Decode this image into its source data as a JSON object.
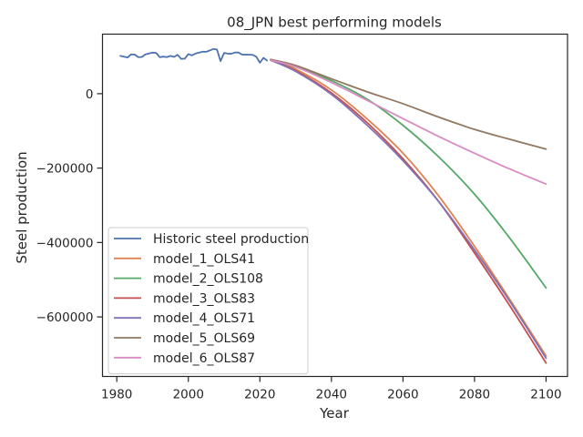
{
  "chart_data": {
    "type": "line",
    "title": "08_JPN best performing models",
    "xlabel": "Year",
    "ylabel": "Steel production",
    "xlim": [
      1976,
      2106
    ],
    "ylim": [
      -760000,
      160000
    ],
    "xticks": [
      1980,
      2000,
      2020,
      2040,
      2060,
      2080,
      2100
    ],
    "xtick_labels": [
      "1980",
      "2000",
      "2020",
      "2040",
      "2060",
      "2080",
      "2100"
    ],
    "yticks": [
      0,
      -200000,
      -400000,
      -600000
    ],
    "ytick_labels": [
      "0",
      "−200000",
      "−400000",
      "−600000"
    ],
    "grid": false,
    "legend_position": "lower-left",
    "series": [
      {
        "name": "Historic steel production",
        "color": "#4c72b0",
        "x": [
          1981,
          1982,
          1983,
          1984,
          1985,
          1986,
          1987,
          1988,
          1989,
          1990,
          1991,
          1992,
          1993,
          1994,
          1995,
          1996,
          1997,
          1998,
          1999,
          2000,
          2001,
          2002,
          2003,
          2004,
          2005,
          2006,
          2007,
          2008,
          2009,
          2010,
          2011,
          2012,
          2013,
          2014,
          2015,
          2016,
          2017,
          2018,
          2019,
          2020,
          2021,
          2022
        ],
        "y": [
          101700,
          99500,
          97200,
          105600,
          105300,
          98300,
          98500,
          105700,
          108000,
          110300,
          109600,
          98100,
          99600,
          98300,
          101600,
          98800,
          104500,
          93500,
          94200,
          106400,
          102900,
          107700,
          110500,
          112700,
          112500,
          116200,
          120200,
          118700,
          87500,
          109600,
          107600,
          107200,
          110600,
          110700,
          105100,
          104800,
          104700,
          104300,
          99300,
          83200,
          96300,
          89200
        ]
      },
      {
        "name": "model_1_OLS41",
        "color": "#dd8452",
        "x": [
          2023,
          2030,
          2040,
          2050,
          2060,
          2070,
          2080,
          2090,
          2100
        ],
        "y": [
          90000,
          66000,
          10000,
          -68000,
          -160000,
          -275000,
          -410000,
          -555000,
          -705000
        ]
      },
      {
        "name": "model_2_OLS108",
        "color": "#55a868",
        "x": [
          2023,
          2030,
          2040,
          2050,
          2060,
          2070,
          2080,
          2090,
          2100
        ],
        "y": [
          90000,
          72000,
          35000,
          -15000,
          -85000,
          -170000,
          -270000,
          -390000,
          -522000
        ]
      },
      {
        "name": "model_3_OLS83",
        "color": "#c44e52",
        "x": [
          2023,
          2030,
          2040,
          2050,
          2060,
          2070,
          2080,
          2090,
          2100
        ],
        "y": [
          90000,
          62000,
          2000,
          -78000,
          -175000,
          -290000,
          -428000,
          -572000,
          -724000
        ]
      },
      {
        "name": "model_4_OLS71",
        "color": "#8172b3",
        "x": [
          2023,
          2030,
          2040,
          2050,
          2060,
          2070,
          2080,
          2090,
          2100
        ],
        "y": [
          90000,
          60000,
          -2000,
          -85000,
          -180000,
          -290000,
          -420000,
          -560000,
          -711000
        ]
      },
      {
        "name": "model_5_OLS69",
        "color": "#937860",
        "x": [
          2023,
          2030,
          2040,
          2050,
          2060,
          2070,
          2080,
          2090,
          2100
        ],
        "y": [
          92000,
          76000,
          40000,
          5000,
          -27000,
          -63000,
          -96000,
          -123000,
          -149000
        ]
      },
      {
        "name": "model_6_OLS87",
        "color": "#da8bc3",
        "x": [
          2023,
          2030,
          2040,
          2050,
          2060,
          2070,
          2080,
          2090,
          2100
        ],
        "y": [
          90000,
          72000,
          30000,
          -18000,
          -67000,
          -115000,
          -160000,
          -203000,
          -243000
        ]
      }
    ]
  }
}
